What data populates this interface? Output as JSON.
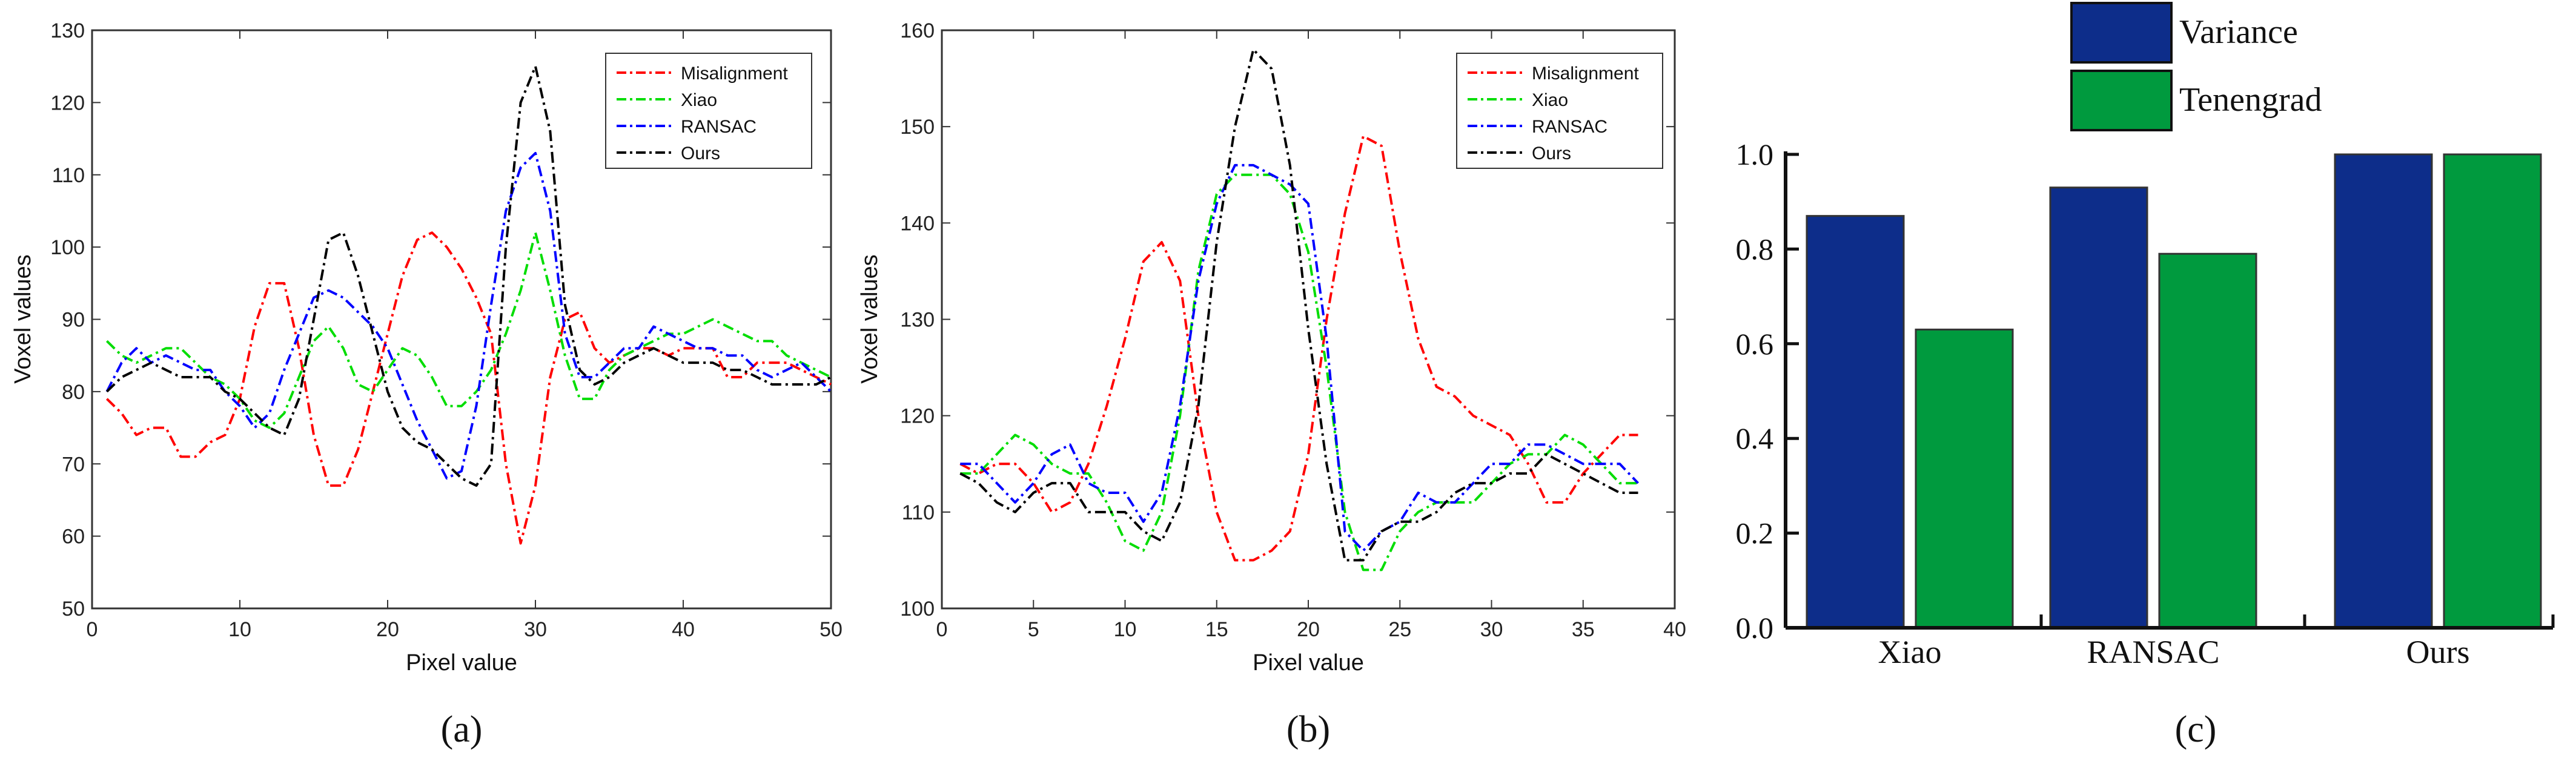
{
  "panel_labels": [
    "(a)",
    "(b)",
    "(c)"
  ],
  "colors": {
    "misalignment": "#ff0000",
    "xiao": "#00dd00",
    "ransac": "#0000ff",
    "ours": "#000000",
    "variance": "#0d2d8a",
    "tenengrad": "#009a3e"
  },
  "chart_data": [
    {
      "type": "line",
      "panel": "(a)",
      "xlabel": "Pixel value",
      "ylabel": "Voxel values",
      "xlim": [
        0,
        50
      ],
      "ylim": [
        50,
        130
      ],
      "xticks": [
        0,
        10,
        20,
        30,
        40,
        50
      ],
      "yticks": [
        50,
        60,
        70,
        80,
        90,
        100,
        110,
        120,
        130
      ],
      "legend_position": "top-right",
      "x": [
        1,
        2,
        3,
        4,
        5,
        6,
        7,
        8,
        9,
        10,
        11,
        12,
        13,
        14,
        15,
        16,
        17,
        18,
        19,
        20,
        21,
        22,
        23,
        24,
        25,
        26,
        27,
        28,
        29,
        30,
        31,
        32,
        33,
        34,
        35,
        36,
        37,
        38,
        39,
        40,
        41,
        42,
        43,
        44,
        45,
        46,
        47,
        48,
        49,
        50
      ],
      "series": [
        {
          "name": "Misalignment",
          "color_key": "misalignment",
          "values": [
            79,
            77,
            74,
            75,
            75,
            71,
            71,
            73,
            74,
            79,
            89,
            95,
            95,
            86,
            74,
            67,
            67,
            72,
            80,
            88,
            96,
            101,
            102,
            100,
            97,
            93,
            88,
            70,
            59,
            67,
            82,
            90,
            91,
            86,
            84,
            85,
            86,
            86,
            85,
            86,
            86,
            86,
            82,
            82,
            84,
            84,
            84,
            83,
            82,
            81
          ]
        },
        {
          "name": "Xiao",
          "color_key": "xiao",
          "values": [
            87,
            85,
            84,
            85,
            86,
            86,
            84,
            82,
            81,
            79,
            76,
            75,
            77,
            82,
            87,
            89,
            86,
            81,
            80,
            83,
            86,
            85,
            82,
            78,
            78,
            80,
            83,
            88,
            94,
            102,
            94,
            85,
            79,
            79,
            83,
            85,
            86,
            87,
            88,
            88,
            89,
            90,
            89,
            88,
            87,
            87,
            85,
            84,
            83,
            82
          ]
        },
        {
          "name": "RANSAC",
          "color_key": "ransac",
          "values": [
            80,
            84,
            86,
            84,
            85,
            84,
            83,
            83,
            80,
            78,
            75,
            77,
            83,
            88,
            93,
            94,
            93,
            91,
            89,
            86,
            81,
            76,
            72,
            68,
            69,
            78,
            92,
            105,
            111,
            113,
            105,
            88,
            82,
            82,
            84,
            86,
            86,
            89,
            88,
            87,
            86,
            86,
            85,
            85,
            83,
            82,
            83,
            84,
            82,
            80
          ]
        },
        {
          "name": "Ours",
          "color_key": "ours",
          "values": [
            80,
            82,
            83,
            84,
            83,
            82,
            82,
            82,
            80,
            79,
            77,
            75,
            74,
            79,
            90,
            101,
            102,
            96,
            88,
            80,
            75,
            73,
            72,
            70,
            68,
            67,
            70,
            100,
            120,
            125,
            116,
            92,
            83,
            81,
            82,
            84,
            85,
            86,
            85,
            84,
            84,
            84,
            83,
            83,
            82,
            81,
            81,
            81,
            81,
            82
          ]
        }
      ]
    },
    {
      "type": "line",
      "panel": "(b)",
      "xlabel": "Pixel value",
      "ylabel": "Voxel values",
      "xlim": [
        0,
        40
      ],
      "ylim": [
        100,
        160
      ],
      "xticks": [
        0,
        5,
        10,
        15,
        20,
        25,
        30,
        35,
        40
      ],
      "yticks": [
        100,
        110,
        120,
        130,
        140,
        150,
        160
      ],
      "legend_position": "top-right",
      "x": [
        1,
        2,
        3,
        4,
        5,
        6,
        7,
        8,
        9,
        10,
        11,
        12,
        13,
        14,
        15,
        16,
        17,
        18,
        19,
        20,
        21,
        22,
        23,
        24,
        25,
        26,
        27,
        28,
        29,
        30,
        31,
        32,
        33,
        34,
        35,
        36,
        37,
        38
      ],
      "series": [
        {
          "name": "Misalignment",
          "color_key": "misalignment",
          "values": [
            115,
            114,
            115,
            115,
            113,
            110,
            111,
            115,
            121,
            128,
            136,
            138,
            134,
            120,
            110,
            105,
            105,
            106,
            108,
            116,
            130,
            141,
            149,
            148,
            137,
            128,
            123,
            122,
            120,
            119,
            118,
            115,
            111,
            111,
            114,
            116,
            118,
            118
          ]
        },
        {
          "name": "Xiao",
          "color_key": "xiao",
          "values": [
            114,
            114,
            116,
            118,
            117,
            115,
            114,
            114,
            111,
            107,
            106,
            110,
            120,
            135,
            143,
            145,
            145,
            145,
            143,
            137,
            125,
            110,
            104,
            104,
            108,
            110,
            111,
            111,
            111,
            113,
            115,
            116,
            116,
            118,
            117,
            115,
            113,
            113
          ]
        },
        {
          "name": "RANSAC",
          "color_key": "ransac",
          "values": [
            115,
            115,
            113,
            111,
            113,
            116,
            117,
            113,
            112,
            112,
            109,
            112,
            121,
            134,
            142,
            146,
            146,
            145,
            144,
            142,
            128,
            108,
            106,
            108,
            109,
            112,
            111,
            111,
            113,
            115,
            115,
            117,
            117,
            116,
            115,
            115,
            115,
            113
          ]
        },
        {
          "name": "Ours",
          "color_key": "ours",
          "values": [
            114,
            113,
            111,
            110,
            112,
            113,
            113,
            110,
            110,
            110,
            108,
            107,
            111,
            121,
            138,
            150,
            158,
            156,
            146,
            129,
            115,
            105,
            105,
            108,
            109,
            109,
            110,
            112,
            113,
            113,
            114,
            114,
            116,
            115,
            114,
            113,
            112,
            112
          ]
        }
      ]
    },
    {
      "type": "bar",
      "panel": "(c)",
      "categories": [
        "Xiao",
        "RANSAC",
        "Ours"
      ],
      "ylim": [
        0,
        1.0
      ],
      "yticks": [
        0.0,
        0.2,
        0.4,
        0.6,
        0.8,
        1.0
      ],
      "ytick_labels": [
        "0.0",
        "0.2",
        "0.4",
        "0.6",
        "0.8",
        "1.0"
      ],
      "legend_position": "top",
      "series": [
        {
          "name": "Variance",
          "color_key": "variance",
          "values": [
            0.87,
            0.93,
            1.0
          ]
        },
        {
          "name": "Tenengrad",
          "color_key": "tenengrad",
          "values": [
            0.63,
            0.79,
            1.0
          ]
        }
      ]
    }
  ]
}
